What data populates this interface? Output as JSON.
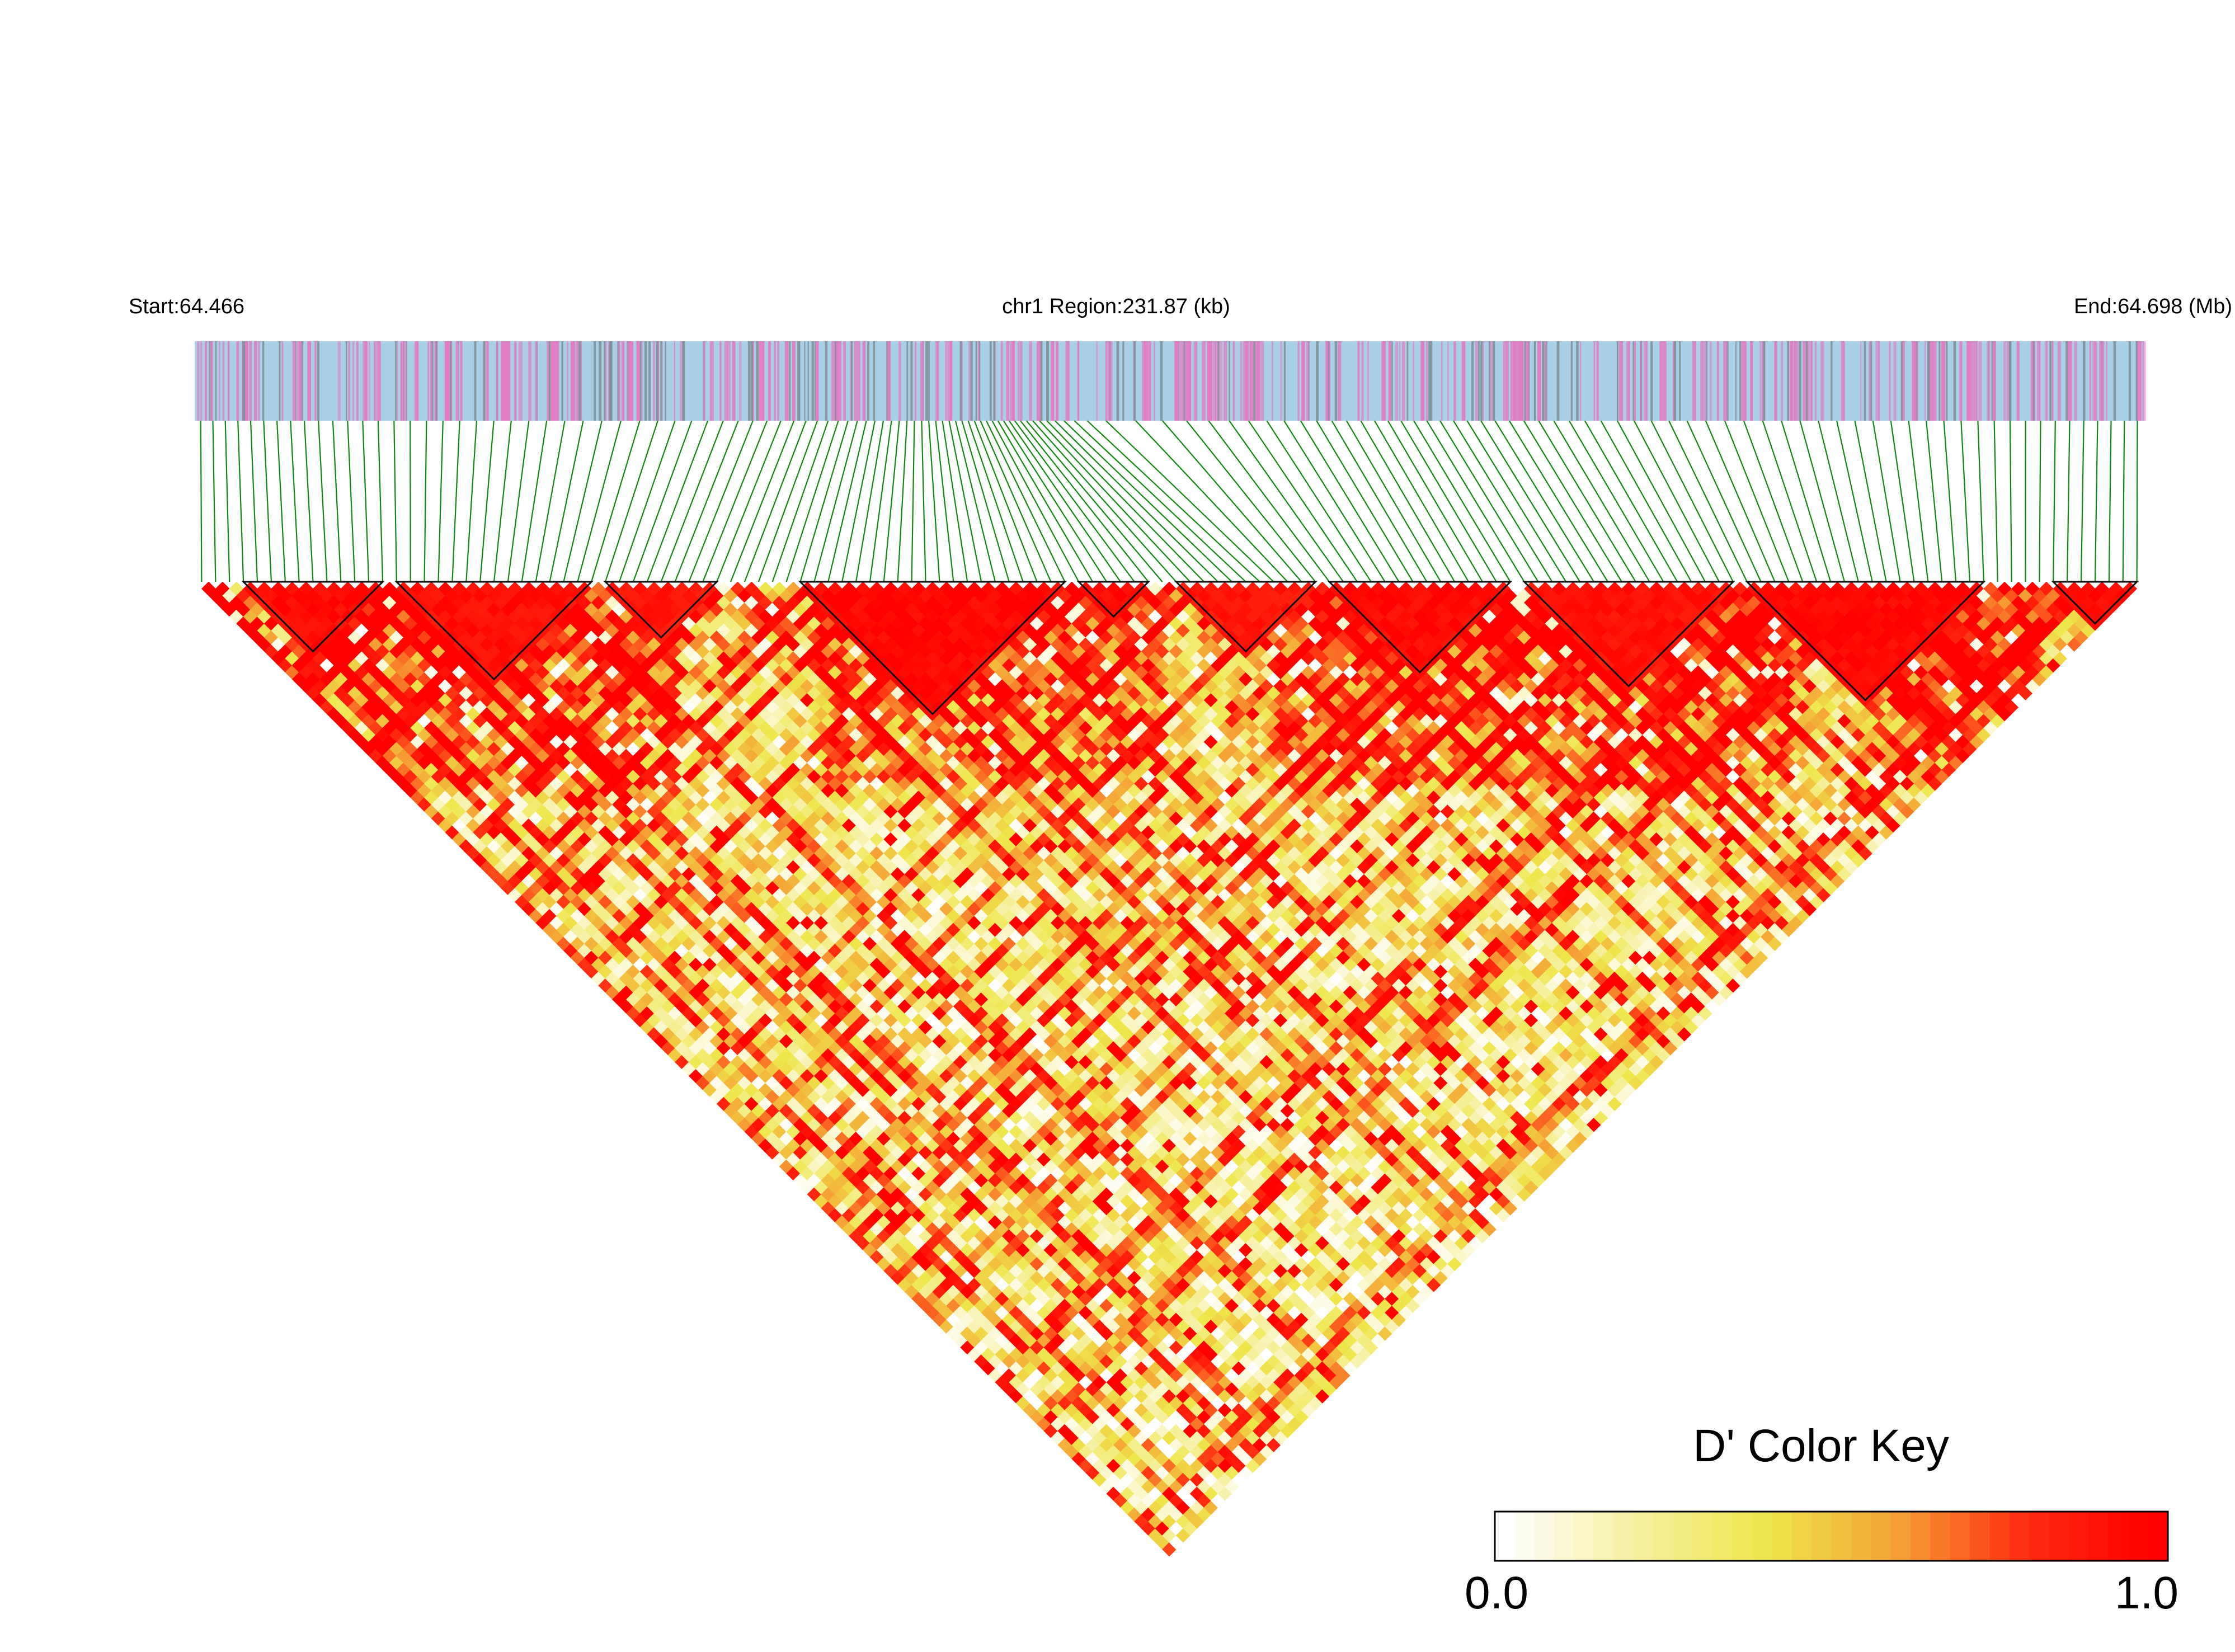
{
  "chart_data": {
    "type": "heatmap",
    "subtype": "linkage-disequilibrium-triangle",
    "header": {
      "start_label": "Start:64.466",
      "region_label": "chr1 Region:231.87 (kb)",
      "end_label": "End:64.698 (Mb)"
    },
    "chromosome": "chr1",
    "region_start_mb": 64.466,
    "region_end_mb": 64.698,
    "region_length_kb": 231.87,
    "metric": "D'",
    "color_key": {
      "title": "D' Color Key",
      "min_label": "0.0",
      "max_label": "1.0",
      "min": 0.0,
      "max": 1.0,
      "stops": [
        "#ffffff",
        "#f6f0a0",
        "#eee74c",
        "#f5a236",
        "#ff2a10",
        "#ff0000"
      ]
    },
    "snp_track_colors": {
      "background": "#a8cfe5",
      "variant_pink": "#e27cc4",
      "variant_grey": "#7e8f96",
      "connector": "#118811"
    },
    "marker_density_profile": [
      {
        "x_fraction": 0.0,
        "relative_density": 1.6
      },
      {
        "x_fraction": 0.1,
        "relative_density": 1.2
      },
      {
        "x_fraction": 0.22,
        "relative_density": 1.0
      },
      {
        "x_fraction": 0.3,
        "relative_density": 1.4
      },
      {
        "x_fraction": 0.42,
        "relative_density": 3.5
      },
      {
        "x_fraction": 0.47,
        "relative_density": 0.6
      },
      {
        "x_fraction": 0.62,
        "relative_density": 1.5
      },
      {
        "x_fraction": 0.78,
        "relative_density": 1.0
      },
      {
        "x_fraction": 0.9,
        "relative_density": 1.1
      },
      {
        "x_fraction": 1.0,
        "relative_density": 1.5
      }
    ],
    "high_ld_blocks": [
      {
        "start_fraction": 0.02,
        "end_fraction": 0.1,
        "mean_d_prime": 0.95
      },
      {
        "start_fraction": 0.1,
        "end_fraction": 0.21,
        "mean_d_prime": 0.93
      },
      {
        "start_fraction": 0.21,
        "end_fraction": 0.27,
        "mean_d_prime": 0.9
      },
      {
        "start_fraction": 0.31,
        "end_fraction": 0.45,
        "mean_d_prime": 0.97
      },
      {
        "start_fraction": 0.45,
        "end_fraction": 0.49,
        "mean_d_prime": 0.95
      },
      {
        "start_fraction": 0.5,
        "end_fraction": 0.58,
        "mean_d_prime": 0.9
      },
      {
        "start_fraction": 0.58,
        "end_fraction": 0.68,
        "mean_d_prime": 0.95
      },
      {
        "start_fraction": 0.68,
        "end_fraction": 0.79,
        "mean_d_prime": 0.92
      },
      {
        "start_fraction": 0.79,
        "end_fraction": 0.92,
        "mean_d_prime": 0.97
      },
      {
        "start_fraction": 0.95,
        "end_fraction": 1.0,
        "mean_d_prime": 0.95
      }
    ]
  }
}
